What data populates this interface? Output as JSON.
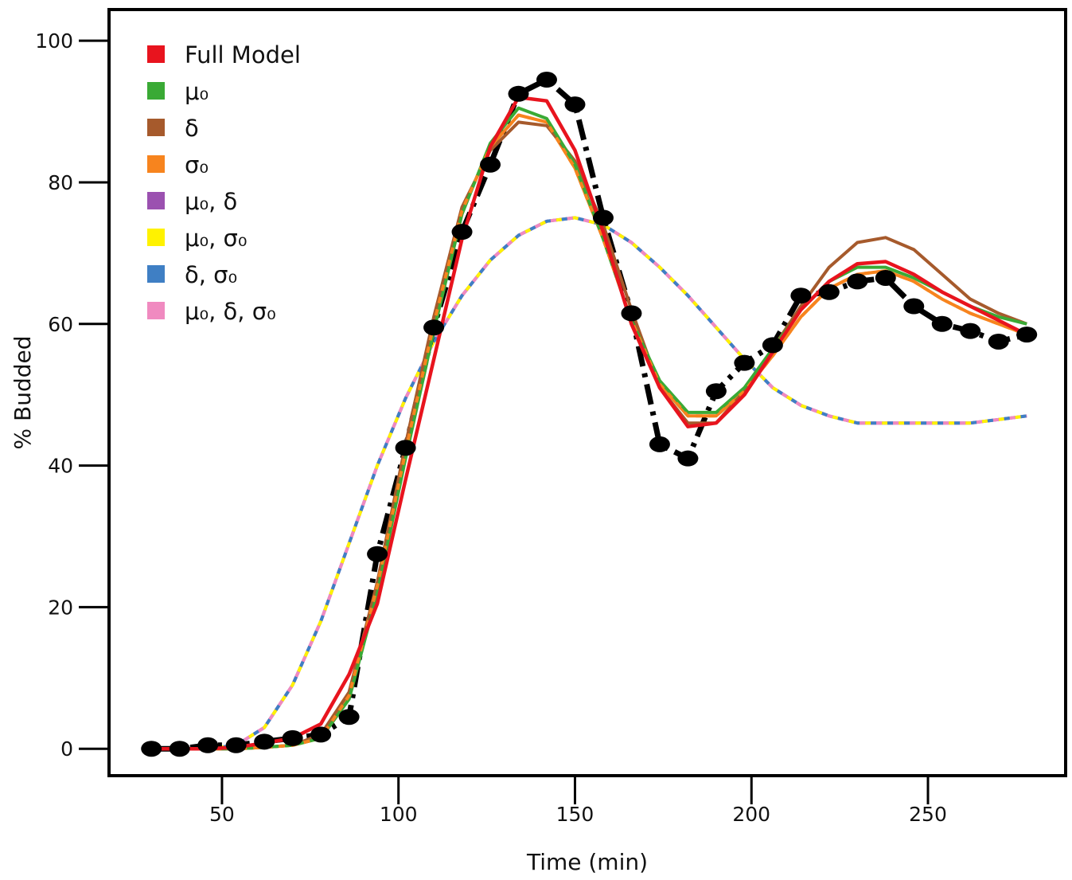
{
  "chart_data": {
    "type": "line",
    "title": "",
    "xlabel": "Time (min)",
    "ylabel": "% Budded",
    "xlim": [
      18,
      289
    ],
    "ylim": [
      -3.8,
      104.4
    ],
    "xticks": [
      50,
      100,
      150,
      200,
      250
    ],
    "yticks": [
      0,
      20,
      40,
      60,
      80,
      100
    ],
    "grid": false,
    "legend_position": "top-left",
    "colors": {
      "observed": "#000000",
      "full": "#e8141e",
      "mu0": "#3aaa35",
      "delta": "#a65a2c",
      "sigma0": "#f7841e",
      "mu0_delta": "#9b51b0",
      "mu0_sigma0": "#fff200",
      "delta_sigma0": "#3f7fc4",
      "mu0_delta_sigma0": "#f08ac0"
    },
    "legend": [
      {
        "key": "full",
        "label": "Full Model"
      },
      {
        "key": "mu0",
        "label": "μ₀"
      },
      {
        "key": "delta",
        "label": "δ"
      },
      {
        "key": "sigma0",
        "label": "σ₀"
      },
      {
        "key": "mu0_delta",
        "label": "μ₀, δ"
      },
      {
        "key": "mu0_sigma0",
        "label": "μ₀, σ₀"
      },
      {
        "key": "delta_sigma0",
        "label": "δ, σ₀"
      },
      {
        "key": "mu0_delta_sigma0",
        "label": "μ₀, δ, σ₀"
      }
    ],
    "observed": {
      "x": [
        30,
        38,
        46,
        54,
        62,
        70,
        78,
        86,
        94,
        102,
        110,
        118,
        126,
        134,
        142,
        150,
        158,
        166,
        174,
        182,
        190,
        198,
        206,
        214,
        222,
        230,
        238,
        246,
        254,
        262,
        270,
        278
      ],
      "y": [
        0,
        0,
        0.5,
        0.5,
        1,
        1.5,
        2,
        4.5,
        27.5,
        42.5,
        59.5,
        73,
        82.5,
        92.5,
        94.5,
        91,
        75,
        61.5,
        43,
        41,
        50.5,
        54.5,
        57,
        64,
        64.5,
        66,
        66.5,
        62.5,
        60,
        59,
        57.5,
        58.5
      ]
    },
    "models": {
      "full": {
        "x": [
          30,
          38,
          46,
          54,
          62,
          70,
          78,
          86,
          94,
          102,
          110,
          118,
          126,
          134,
          142,
          150,
          158,
          166,
          174,
          182,
          190,
          198,
          206,
          214,
          222,
          230,
          238,
          246,
          254,
          262,
          270,
          278
        ],
        "y": [
          0,
          0,
          0,
          0.2,
          0.8,
          1.5,
          3.5,
          10.5,
          20.5,
          38,
          55,
          72,
          85,
          92,
          91.5,
          84.5,
          73,
          60,
          51,
          45.5,
          46,
          50,
          56,
          62,
          66,
          68.5,
          68.8,
          67,
          64.5,
          62.5,
          60.5,
          58.5
        ]
      },
      "mu0": {
        "x": [
          30,
          38,
          46,
          54,
          62,
          70,
          78,
          86,
          94,
          102,
          110,
          118,
          126,
          134,
          142,
          150,
          158,
          166,
          174,
          182,
          190,
          198,
          206,
          214,
          222,
          230,
          238,
          246,
          254,
          262,
          270,
          278
        ],
        "y": [
          0,
          0,
          0,
          0,
          0.2,
          0.5,
          1.5,
          7,
          22,
          41,
          59,
          75.5,
          85.5,
          90.5,
          89,
          82.5,
          72,
          60.5,
          52,
          47.5,
          47.5,
          51,
          56.5,
          62,
          66,
          68,
          68,
          66.5,
          64.5,
          62.5,
          61,
          60
        ]
      },
      "delta": {
        "x": [
          30,
          38,
          46,
          54,
          62,
          70,
          78,
          86,
          94,
          102,
          110,
          118,
          126,
          134,
          142,
          150,
          158,
          166,
          174,
          182,
          190,
          198,
          206,
          214,
          222,
          230,
          238,
          246,
          254,
          262,
          270,
          278
        ],
        "y": [
          0,
          0,
          0,
          0,
          0.2,
          0.5,
          2,
          8,
          23.5,
          43,
          61,
          76.5,
          84.5,
          88.5,
          88,
          83,
          74,
          62,
          51,
          46,
          46,
          50.5,
          56.5,
          62.5,
          68,
          71.5,
          72.2,
          70.5,
          67,
          63.5,
          61.5,
          60
        ]
      },
      "sigma0": {
        "x": [
          30,
          38,
          46,
          54,
          62,
          70,
          78,
          86,
          94,
          102,
          110,
          118,
          126,
          134,
          142,
          150,
          158,
          166,
          174,
          182,
          190,
          198,
          206,
          214,
          222,
          230,
          238,
          246,
          254,
          262,
          270,
          278
        ],
        "y": [
          0,
          0,
          0,
          0,
          0.2,
          0.5,
          1.5,
          7.5,
          23,
          42,
          60,
          76,
          85,
          89.5,
          88.5,
          82,
          72,
          60.5,
          51.5,
          47,
          47,
          50.5,
          55.5,
          61,
          65,
          67,
          67.5,
          66,
          63.5,
          61.5,
          60,
          58.5
        ]
      },
      "mu0_delta": {
        "x": [
          30,
          38,
          46,
          54,
          62,
          70,
          78,
          86,
          94,
          102,
          110,
          118,
          126,
          134,
          142,
          150,
          158,
          166,
          174,
          182,
          190,
          198,
          206,
          214,
          222,
          230,
          238,
          246,
          254,
          262,
          270,
          278
        ],
        "y": [
          0,
          0,
          0,
          0.5,
          3,
          9,
          18,
          29,
          40,
          49.5,
          57.5,
          64,
          69,
          72.5,
          74.5,
          75,
          74,
          71.5,
          68,
          64,
          59.5,
          55,
          51,
          48.5,
          47,
          46,
          46,
          46,
          46,
          46,
          46.5,
          47
        ]
      },
      "mu0_sigma0": {
        "x": [
          30,
          38,
          46,
          54,
          62,
          70,
          78,
          86,
          94,
          102,
          110,
          118,
          126,
          134,
          142,
          150,
          158,
          166,
          174,
          182,
          190,
          198,
          206,
          214,
          222,
          230,
          238,
          246,
          254,
          262,
          270,
          278
        ],
        "y": [
          0,
          0,
          0,
          0.5,
          3,
          9,
          18,
          29,
          40,
          49.5,
          57.5,
          64,
          69,
          72.5,
          74.5,
          75,
          74,
          71.5,
          68,
          64,
          59.5,
          55,
          51,
          48.5,
          47,
          46,
          46,
          46,
          46,
          46,
          46.5,
          47
        ]
      },
      "delta_sigma0": {
        "x": [
          30,
          38,
          46,
          54,
          62,
          70,
          78,
          86,
          94,
          102,
          110,
          118,
          126,
          134,
          142,
          150,
          158,
          166,
          174,
          182,
          190,
          198,
          206,
          214,
          222,
          230,
          238,
          246,
          254,
          262,
          270,
          278
        ],
        "y": [
          0,
          0,
          0,
          0.5,
          3,
          9,
          18,
          29,
          40,
          49.5,
          57.5,
          64,
          69,
          72.5,
          74.5,
          75,
          74,
          71.5,
          68,
          64,
          59.5,
          55,
          51,
          48.5,
          47,
          46,
          46,
          46,
          46,
          46,
          46.5,
          47
        ]
      },
      "mu0_delta_sigma0": {
        "x": [
          30,
          38,
          46,
          54,
          62,
          70,
          78,
          86,
          94,
          102,
          110,
          118,
          126,
          134,
          142,
          150,
          158,
          166,
          174,
          182,
          190,
          198,
          206,
          214,
          222,
          230,
          238,
          246,
          254,
          262,
          270,
          278
        ],
        "y": [
          0,
          0,
          0,
          0.5,
          3,
          9,
          18,
          29,
          40,
          49.5,
          57.5,
          64,
          69,
          72.5,
          74.5,
          75,
          74,
          71.5,
          68,
          64,
          59.5,
          55,
          51,
          48.5,
          47,
          46,
          46,
          46,
          46,
          46,
          46.5,
          47
        ]
      }
    }
  }
}
